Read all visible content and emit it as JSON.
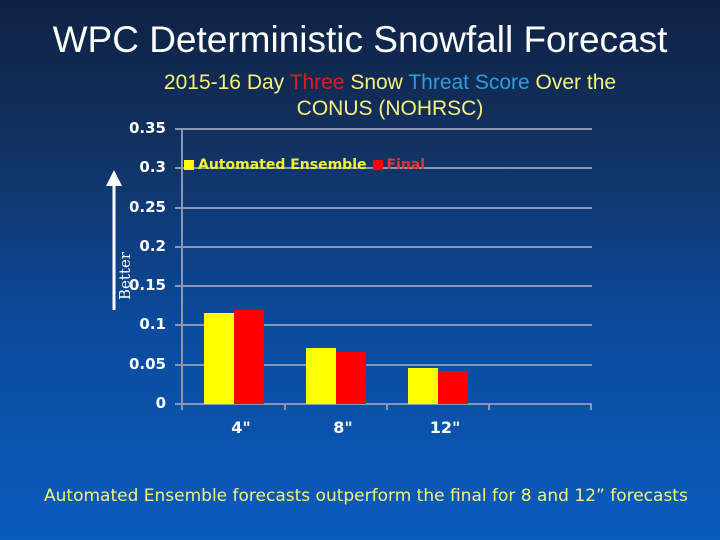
{
  "slide": {
    "title": "WPC Deterministic Snowfall Forecast",
    "subtitle_parts": [
      {
        "text": "2015-16 Day ",
        "color": "#f4f27a"
      },
      {
        "text": "Three",
        "color": "#e11b1b"
      },
      {
        "text": " Snow ",
        "color": "#f4f27a"
      },
      {
        "text": "Threat Score",
        "color": "#2a9ee0"
      },
      {
        "text": " Over the",
        "color": "#f4f27a"
      },
      {
        "text": "CONUS (NOHRSC)",
        "color": "#f4f27a"
      }
    ],
    "better_label": "Better",
    "conclusion": "Automated Ensemble forecasts outperform the final for 8 and 12” forecasts"
  },
  "chart_data": {
    "type": "bar",
    "title": "2015-16 Day Three Snow Threat Score Over the CONUS (NOHRSC)",
    "xlabel": "",
    "ylabel": "Better",
    "categories": [
      "4\"",
      "8\"",
      "12\""
    ],
    "series": [
      {
        "name": "Automated Ensemble",
        "color": "#ffff00",
        "values": [
          0.116,
          0.071,
          0.046
        ]
      },
      {
        "name": "Final",
        "color": "#ff0000",
        "values": [
          0.12,
          0.066,
          0.042
        ]
      }
    ],
    "ylim": [
      0,
      0.35
    ],
    "yticks": [
      "0",
      "0.05",
      "0.1",
      "0.15",
      "0.2",
      "0.25",
      "0.3",
      "0.35"
    ],
    "grid": true,
    "legend_position": "top-left inside"
  }
}
